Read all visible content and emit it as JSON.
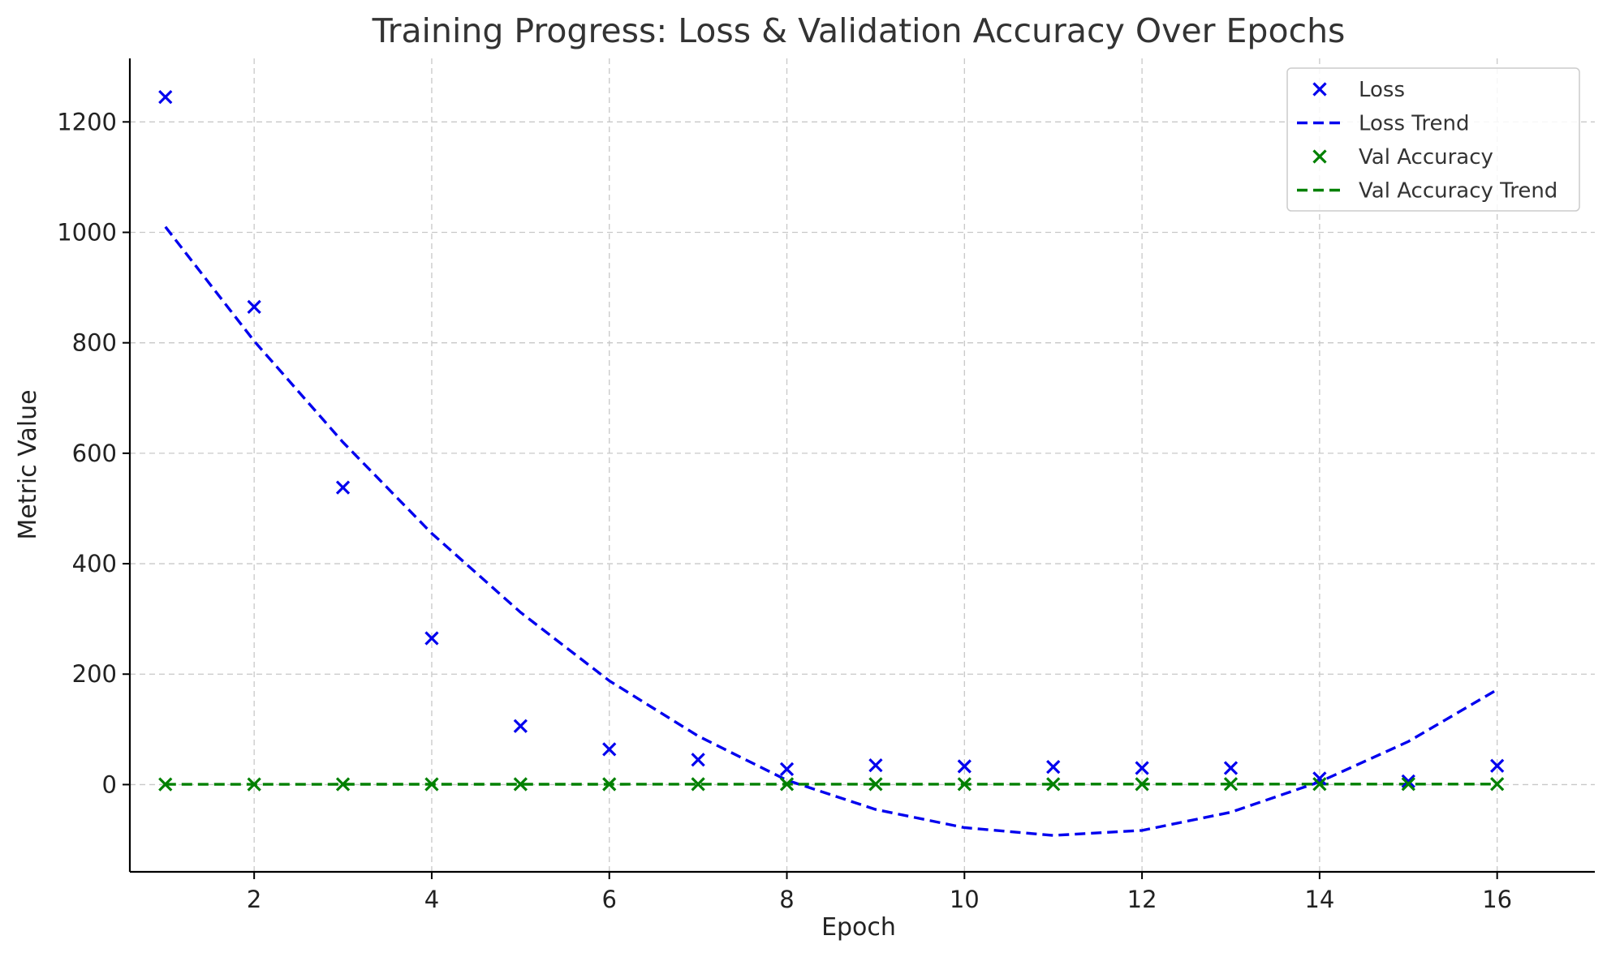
{
  "chart_data": {
    "type": "scatter",
    "title": "Training Progress: Loss & Validation Accuracy Over Epochs",
    "xlabel": "Epoch",
    "ylabel": "Metric Value",
    "xlim": [
      0.6,
      17.1
    ],
    "ylim": [
      -158,
      1315
    ],
    "x_ticks": [
      2,
      4,
      6,
      8,
      10,
      12,
      14,
      16
    ],
    "y_ticks": [
      0,
      200,
      400,
      600,
      800,
      1000,
      1200
    ],
    "grid": true,
    "legend_position": "top-right",
    "x": [
      1,
      2,
      3,
      4,
      5,
      6,
      7,
      8,
      9,
      10,
      11,
      12,
      13,
      14,
      15,
      16
    ],
    "series": [
      {
        "name": "Loss",
        "kind": "scatter",
        "marker": "x",
        "color": "#0000ee",
        "values": [
          1245,
          865,
          538,
          265,
          106,
          64,
          45,
          28,
          35,
          33,
          32,
          30,
          30,
          11,
          6,
          34
        ]
      },
      {
        "name": "Loss Trend",
        "kind": "line",
        "dash": "dashed",
        "color": "#0000ee",
        "values": [
          1010,
          803,
          620,
          455,
          312,
          188,
          88,
          8,
          -45,
          -78,
          -92,
          -83,
          -50,
          5,
          78,
          172
        ]
      },
      {
        "name": "Val Accuracy",
        "kind": "scatter",
        "marker": "x",
        "color": "#008000",
        "values": [
          0.4,
          0.5,
          0.6,
          0.6,
          0.7,
          0.7,
          0.75,
          0.8,
          0.8,
          0.85,
          0.85,
          0.85,
          0.9,
          0.9,
          0.9,
          0.9
        ]
      },
      {
        "name": "Val Accuracy Trend",
        "kind": "line",
        "dash": "dashed",
        "color": "#008000",
        "values": [
          0.45,
          0.5,
          0.55,
          0.6,
          0.65,
          0.68,
          0.72,
          0.75,
          0.78,
          0.8,
          0.82,
          0.84,
          0.86,
          0.87,
          0.89,
          0.9
        ]
      }
    ]
  }
}
